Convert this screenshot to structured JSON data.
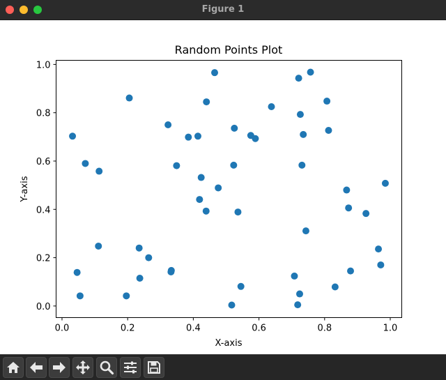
{
  "window": {
    "title": "Figure 1"
  },
  "toolbar": {
    "buttons": [
      {
        "name": "home-button",
        "icon": "home-icon"
      },
      {
        "name": "back-button",
        "icon": "arrow-left-icon"
      },
      {
        "name": "forward-button",
        "icon": "arrow-right-icon"
      },
      {
        "name": "pan-button",
        "icon": "move-icon"
      },
      {
        "name": "zoom-button",
        "icon": "magnifier-icon"
      },
      {
        "name": "subplots-button",
        "icon": "sliders-icon"
      },
      {
        "name": "save-button",
        "icon": "floppy-disk-icon"
      }
    ]
  },
  "chart_data": {
    "type": "scatter",
    "title": "Random Points Plot",
    "xlabel": "X-axis",
    "ylabel": "Y-axis",
    "xlim": [
      -0.018,
      1.035
    ],
    "ylim": [
      -0.048,
      1.017
    ],
    "xticks": [
      0.0,
      0.2,
      0.4,
      0.6,
      0.8,
      1.0
    ],
    "xtick_labels": [
      "0.0",
      "0.2",
      "0.4",
      "0.6",
      "0.8",
      "1.0"
    ],
    "yticks": [
      0.0,
      0.2,
      0.4,
      0.6,
      0.8,
      1.0
    ],
    "ytick_labels": [
      "0.0",
      "0.2",
      "0.4",
      "0.6",
      "0.8",
      "1.0"
    ],
    "grid": false,
    "marker_color": "#1f77b4",
    "points": [
      [
        0.465,
        0.966
      ],
      [
        0.757,
        0.968
      ],
      [
        0.721,
        0.943
      ],
      [
        0.205,
        0.861
      ],
      [
        0.44,
        0.845
      ],
      [
        0.807,
        0.848
      ],
      [
        0.638,
        0.825
      ],
      [
        0.726,
        0.793
      ],
      [
        0.323,
        0.75
      ],
      [
        0.525,
        0.736
      ],
      [
        0.812,
        0.727
      ],
      [
        0.735,
        0.71
      ],
      [
        0.575,
        0.706
      ],
      [
        0.032,
        0.703
      ],
      [
        0.385,
        0.699
      ],
      [
        0.414,
        0.703
      ],
      [
        0.589,
        0.693
      ],
      [
        0.071,
        0.59
      ],
      [
        0.349,
        0.581
      ],
      [
        0.523,
        0.583
      ],
      [
        0.731,
        0.583
      ],
      [
        0.113,
        0.558
      ],
      [
        0.424,
        0.532
      ],
      [
        0.985,
        0.508
      ],
      [
        0.476,
        0.489
      ],
      [
        0.867,
        0.48
      ],
      [
        0.419,
        0.441
      ],
      [
        0.873,
        0.406
      ],
      [
        0.439,
        0.393
      ],
      [
        0.536,
        0.389
      ],
      [
        0.926,
        0.383
      ],
      [
        0.743,
        0.311
      ],
      [
        0.111,
        0.248
      ],
      [
        0.235,
        0.24
      ],
      [
        0.964,
        0.236
      ],
      [
        0.264,
        0.2
      ],
      [
        0.971,
        0.17
      ],
      [
        0.333,
        0.147
      ],
      [
        0.332,
        0.141
      ],
      [
        0.879,
        0.145
      ],
      [
        0.046,
        0.139
      ],
      [
        0.708,
        0.124
      ],
      [
        0.237,
        0.115
      ],
      [
        0.545,
        0.081
      ],
      [
        0.832,
        0.079
      ],
      [
        0.724,
        0.05
      ],
      [
        0.055,
        0.042
      ],
      [
        0.196,
        0.042
      ],
      [
        0.517,
        0.004
      ],
      [
        0.718,
        0.005
      ]
    ]
  }
}
